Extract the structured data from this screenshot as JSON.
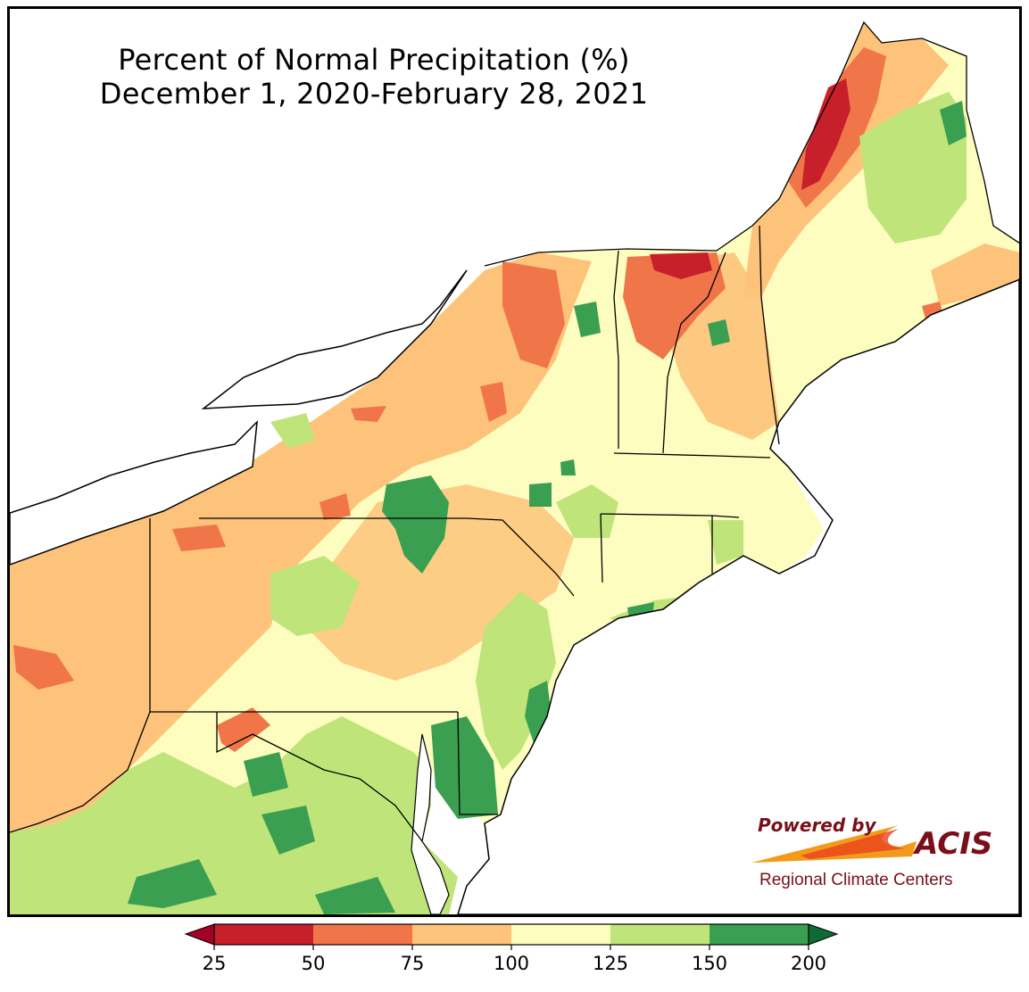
{
  "map": {
    "title": "Percent of Normal Precipitation (%)",
    "subtitle": "December 1, 2020-February 28, 2021",
    "legend": {
      "ticks": [
        "25",
        "50",
        "75",
        "100",
        "125",
        "150",
        "200"
      ],
      "classes": [
        {
          "range": "25-50",
          "color": "#c7202a"
        },
        {
          "range": "50-75",
          "color": "#f07549"
        },
        {
          "range": "75-100",
          "color": "#fdc37a"
        },
        {
          "range": "100-125",
          "color": "#fdfdbf"
        },
        {
          "range": "125-150",
          "color": "#bfe47a"
        },
        {
          "range": "150-200",
          "color": "#3a9f50"
        }
      ],
      "under_color": "#a50026",
      "over_color": "#0e6b34"
    },
    "colors": {
      "water": "#ffffff",
      "border": "#000000",
      "county_lines": "#9a9a9a"
    },
    "logo": {
      "powered_by": "Powered by",
      "name": "ACIS",
      "org": "Regional Climate Centers",
      "text_color": "#7a0f1a"
    }
  }
}
